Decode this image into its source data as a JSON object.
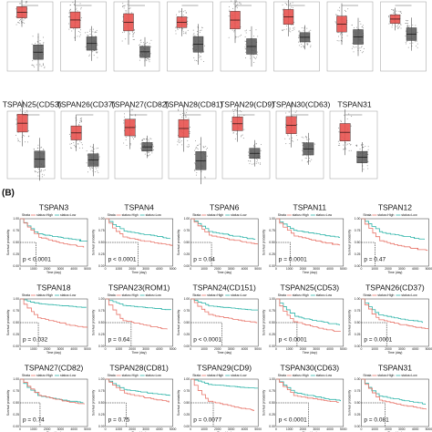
{
  "boxplot_titles": [
    "TSPAN25(CD53)",
    "TSPAN26(CD37)",
    "TSPAN27(CD82)",
    "TSPAN28(CD81)",
    "TSPAN29(CD9)",
    "TSPAN30(CD63)",
    "TSPAN31"
  ],
  "panel_label": "(B)",
  "km_common": {
    "y_label": "Survival probability",
    "x_label": "Time (day)",
    "strata": "Strata",
    "high": "status=High",
    "low": "status=Low",
    "yticks": [
      "0.00",
      "0.25",
      "0.50",
      "0.75",
      "1.00"
    ],
    "xticks": [
      "0",
      "1000",
      "2000",
      "3000",
      "4000",
      "5000"
    ]
  },
  "km_panels": [
    {
      "title": "TSPAN3",
      "p": "p < 0.0001"
    },
    {
      "title": "TSPAN4",
      "p": "p < 0.0001"
    },
    {
      "title": "TSPAN6",
      "p": "p = 0.04"
    },
    {
      "title": "TSPAN11",
      "p": "p = 0.0001"
    },
    {
      "title": "TSPAN12",
      "p": "p = 0.47"
    },
    {
      "title": "TSPAN18",
      "p": "p = 0.032"
    },
    {
      "title": "TSPAN23(ROM1)",
      "p": "p = 0.64"
    },
    {
      "title": "TSPAN24(CD151)",
      "p": "p < 0.0001"
    },
    {
      "title": "TSPAN25(CD53)",
      "p": "p < 0.0001"
    },
    {
      "title": "TSPAN26(CD37)",
      "p": "p = 0.0001"
    },
    {
      "title": "TSPAN27(CD82)",
      "p": "p = 0.74"
    },
    {
      "title": "TSPAN28(CD81)",
      "p": "p = 0.75"
    },
    {
      "title": "TSPAN29(CD9)",
      "p": "p = 0.0077"
    },
    {
      "title": "TSPAN30(CD63)",
      "p": "p < 0.0001"
    },
    {
      "title": "TSPAN31",
      "p": "p = 0.081"
    }
  ]
}
